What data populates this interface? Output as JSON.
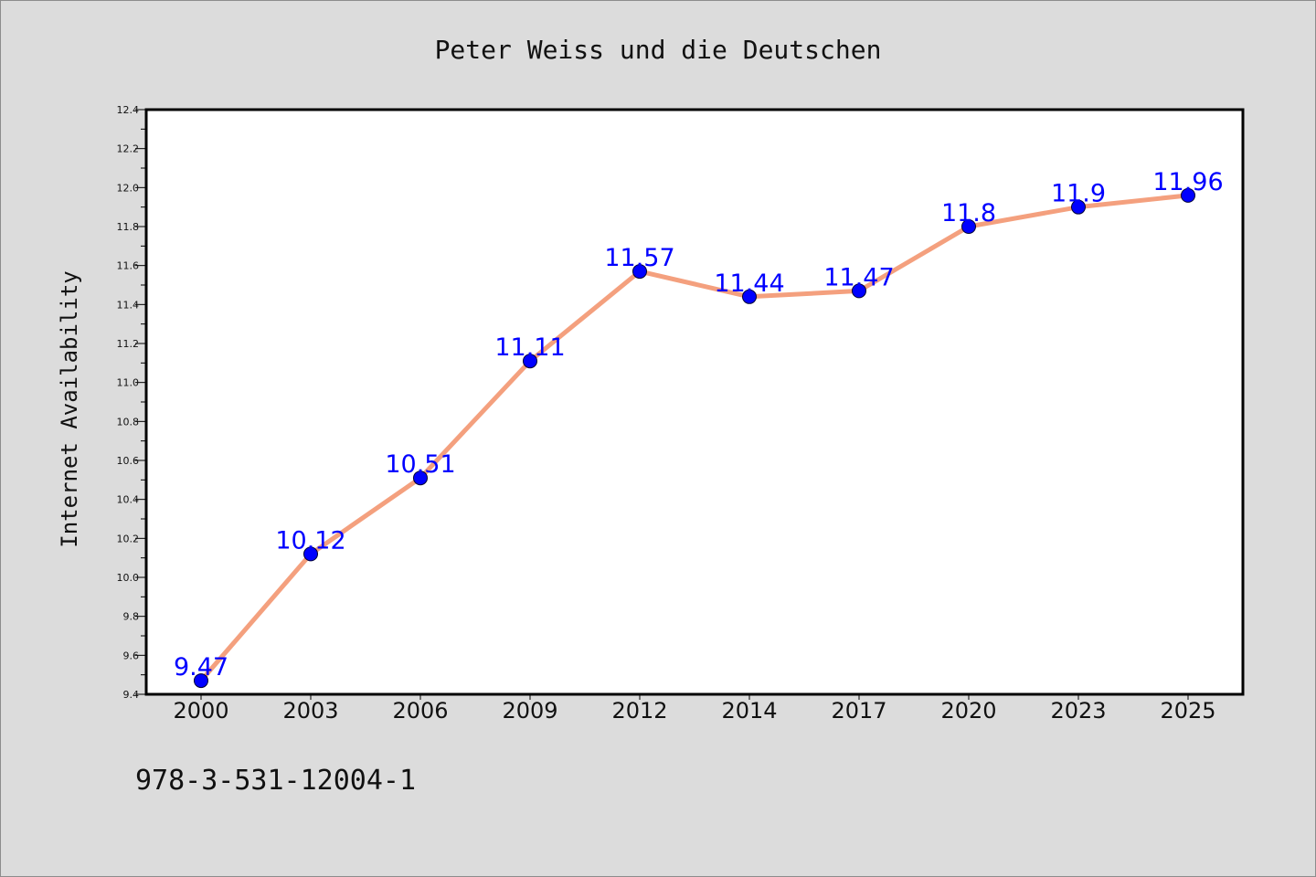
{
  "chart_data": {
    "type": "line",
    "title": "Peter Weiss und die Deutschen",
    "xlabel": "",
    "ylabel": "Internet Availability",
    "categories": [
      "2000",
      "2003",
      "2006",
      "2009",
      "2012",
      "2014",
      "2017",
      "2020",
      "2023",
      "2025"
    ],
    "series": [
      {
        "values": [
          9.47,
          10.12,
          10.51,
          11.11,
          11.57,
          11.44,
          11.47,
          11.8,
          11.9,
          11.96
        ],
        "data_labels": [
          "9.47",
          "10.12",
          "10.51",
          "11.11",
          "11.57",
          "11.44",
          "11.47",
          "11.8",
          "11.9",
          "11.96"
        ]
      }
    ],
    "ylim": [
      9.4,
      12.4
    ],
    "yticks": [
      "9.4",
      "9.6",
      "9.8",
      "10.0",
      "10.2",
      "10.4",
      "10.6",
      "10.8",
      "11.0",
      "11.2",
      "11.4",
      "11.6",
      "11.8",
      "12.0",
      "12.2",
      "12.4"
    ],
    "grid": false,
    "legend": "none",
    "colors": {
      "line": "#f4a07e",
      "marker": "#0000ff",
      "data_label": "#0000ff",
      "background": "#dcdcdc",
      "plot_area": "#ffffff"
    }
  },
  "footer": {
    "isbn": "978-3-531-12004-1"
  }
}
